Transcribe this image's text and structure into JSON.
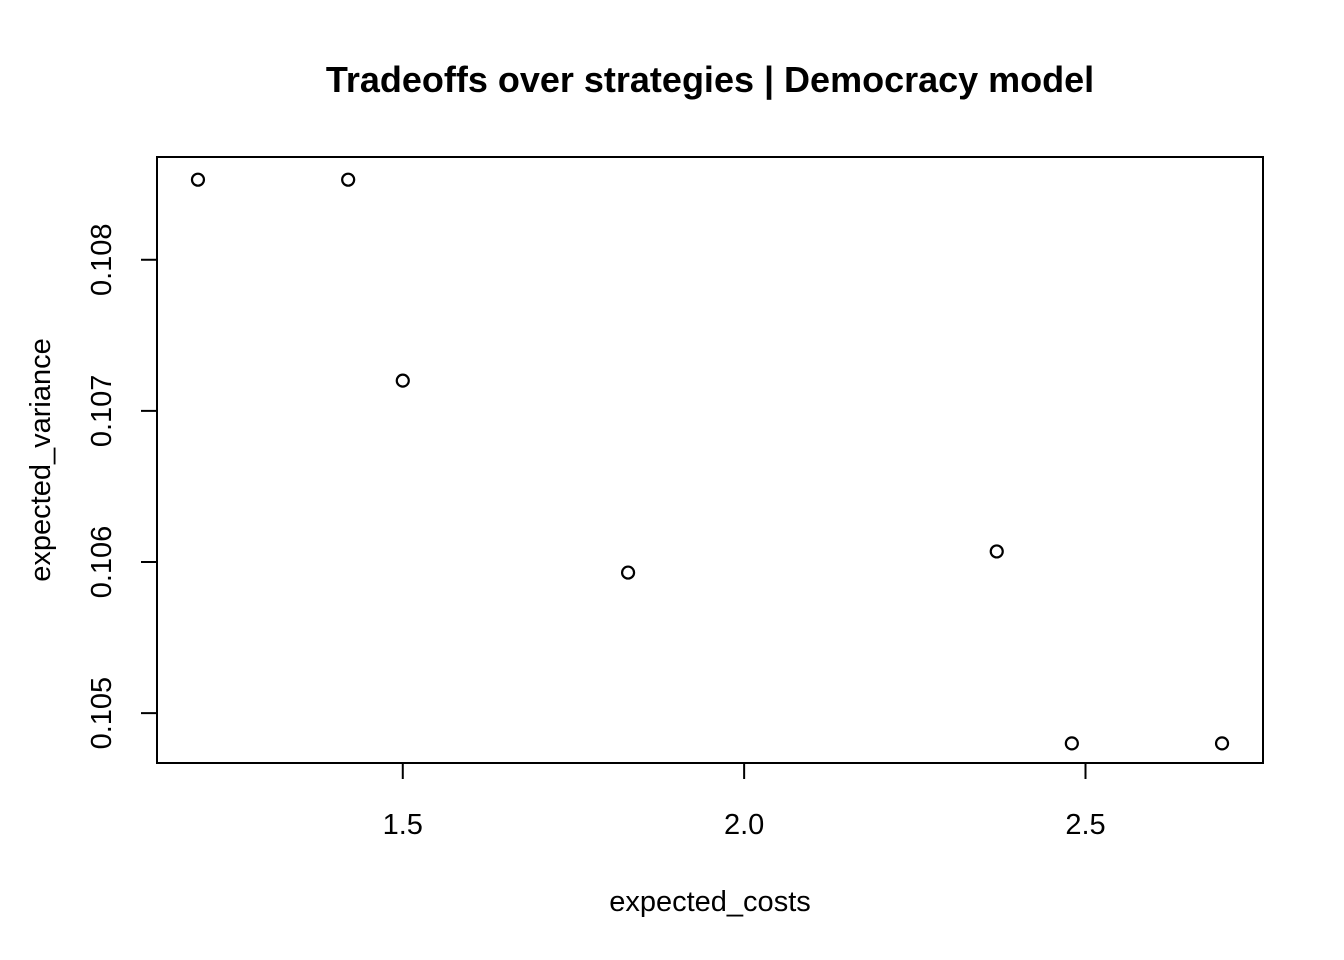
{
  "chart_data": {
    "type": "scatter",
    "title": "Tradeoffs over strategies | Democracy model",
    "xlabel": "expected_costs",
    "ylabel": "expected_variance",
    "xlim": [
      1.14,
      2.76
    ],
    "ylim": [
      0.10467,
      0.10868
    ],
    "xticks": [
      1.5,
      2.0,
      2.5
    ],
    "xtick_labels": [
      "1.5",
      "2.0",
      "2.5"
    ],
    "yticks": [
      0.105,
      0.106,
      0.107,
      0.108
    ],
    "ytick_labels": [
      "0.105",
      "0.106",
      "0.107",
      "0.108"
    ],
    "grid": false,
    "points": [
      {
        "x": 1.2,
        "y": 0.10853
      },
      {
        "x": 1.42,
        "y": 0.10853
      },
      {
        "x": 1.5,
        "y": 0.1072
      },
      {
        "x": 1.83,
        "y": 0.10593
      },
      {
        "x": 2.37,
        "y": 0.10607
      },
      {
        "x": 2.48,
        "y": 0.1048
      },
      {
        "x": 2.7,
        "y": 0.1048
      }
    ]
  }
}
